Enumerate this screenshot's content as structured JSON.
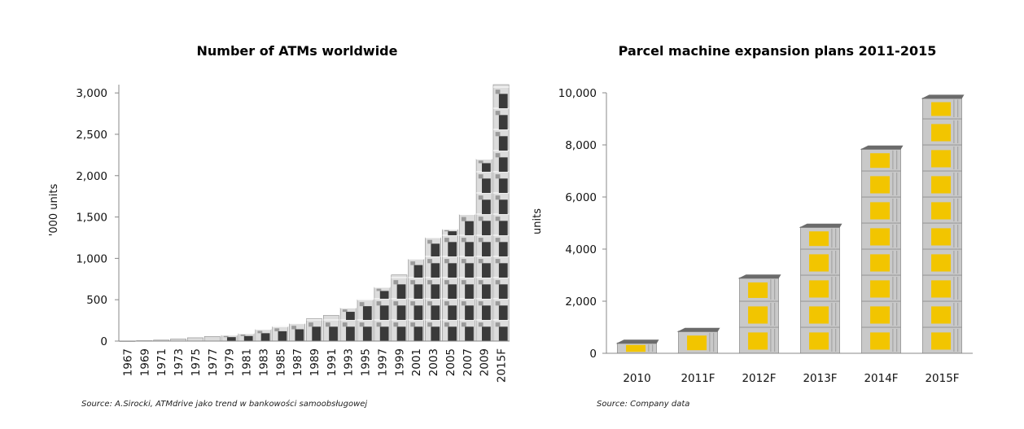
{
  "chart_data": [
    {
      "type": "bar",
      "title": "Number of ATMs worldwide",
      "ylabel": "'000 units",
      "xlabel": "",
      "ylim": [
        0,
        3100
      ],
      "yticks": [
        "0",
        "500",
        "1,000",
        "1,500",
        "2,000",
        "2,500",
        "3,000"
      ],
      "ytick_values": [
        0,
        500,
        1000,
        1500,
        2000,
        2500,
        3000
      ],
      "categories": [
        "1967",
        "1969",
        "1971",
        "1973",
        "1975",
        "1977",
        "1979",
        "1981",
        "1983",
        "1985",
        "1987",
        "1989",
        "1991",
        "1993",
        "1995",
        "1997",
        "1999",
        "2001",
        "2003",
        "2005",
        "2007",
        "2009",
        "2015F"
      ],
      "values": [
        1,
        5,
        12,
        25,
        40,
        55,
        70,
        90,
        140,
        175,
        210,
        270,
        310,
        400,
        500,
        650,
        800,
        990,
        1250,
        1350,
        1530,
        2200,
        3100
      ],
      "source": "Source: A.Sirocki, ATMdrive jako trend w bankowości samoobsługowej"
    },
    {
      "type": "bar",
      "title": "Parcel machine expansion plans 2011-2015",
      "ylabel": "units",
      "xlabel": "",
      "ylim": [
        0,
        10000
      ],
      "yticks": [
        "0",
        "2,000",
        "4,000",
        "6,000",
        "8,000",
        "10,000"
      ],
      "ytick_values": [
        0,
        2000,
        4000,
        6000,
        8000,
        10000
      ],
      "categories": [
        "2010",
        "2011F",
        "2012F",
        "2013F",
        "2014F",
        "2015F"
      ],
      "values": [
        400,
        850,
        2900,
        4850,
        7850,
        9800
      ],
      "source": "Source: Company data"
    }
  ],
  "colors": {
    "atm_light": "#dcdcdc",
    "atm_dark": "#3a3a3a",
    "parcel_body": "#c9c9c9",
    "parcel_yellow": "#f2c500",
    "parcel_roof": "#6b6b6b",
    "axis": "#888888"
  }
}
